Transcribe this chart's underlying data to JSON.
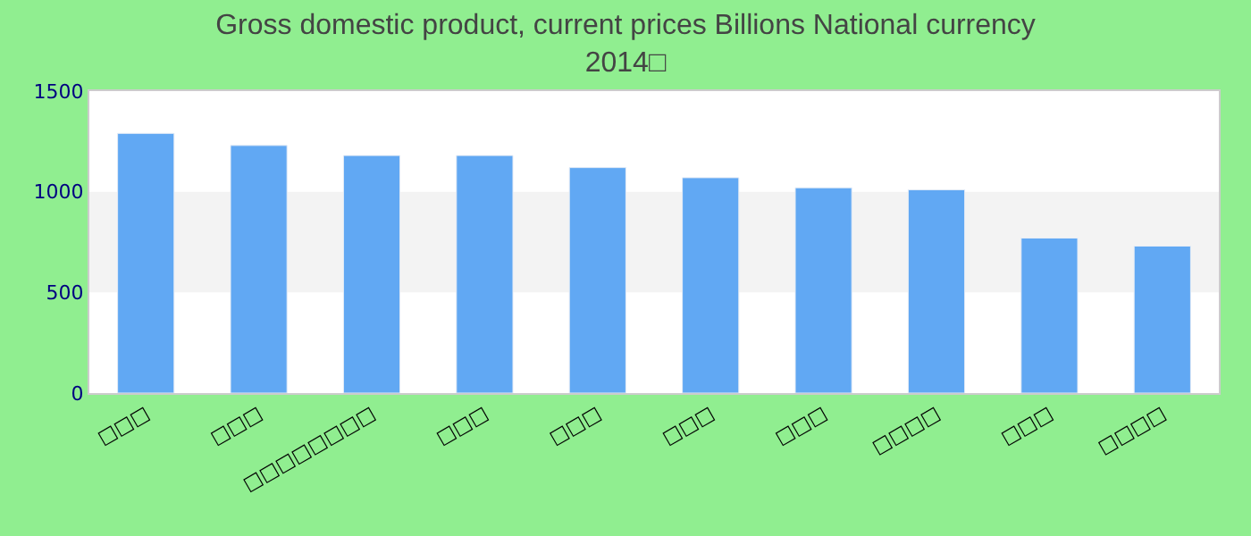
{
  "chart_data": {
    "type": "bar",
    "title": "Gross domestic product, current prices Billions National currency",
    "subtitle": "2014□",
    "categories": [
      "□□□",
      "□□□",
      "□□□□□□□□",
      "□□□",
      "□□□",
      "□□□",
      "□□□",
      "□□□□",
      "□□□",
      "□□□□"
    ],
    "series": [
      {
        "color": "#61a8f3",
        "values": [
          1290,
          1230,
          1180,
          1180,
          1120,
          1070,
          1020,
          1010,
          770,
          730
        ]
      }
    ],
    "ylim": [
      0,
      1500
    ],
    "yticks": [
      0,
      500,
      1000,
      1500
    ],
    "grid": false,
    "bands": [
      {
        "axis": "y",
        "from": 500,
        "to": 1000,
        "color": "#f3f3f3"
      }
    ]
  }
}
